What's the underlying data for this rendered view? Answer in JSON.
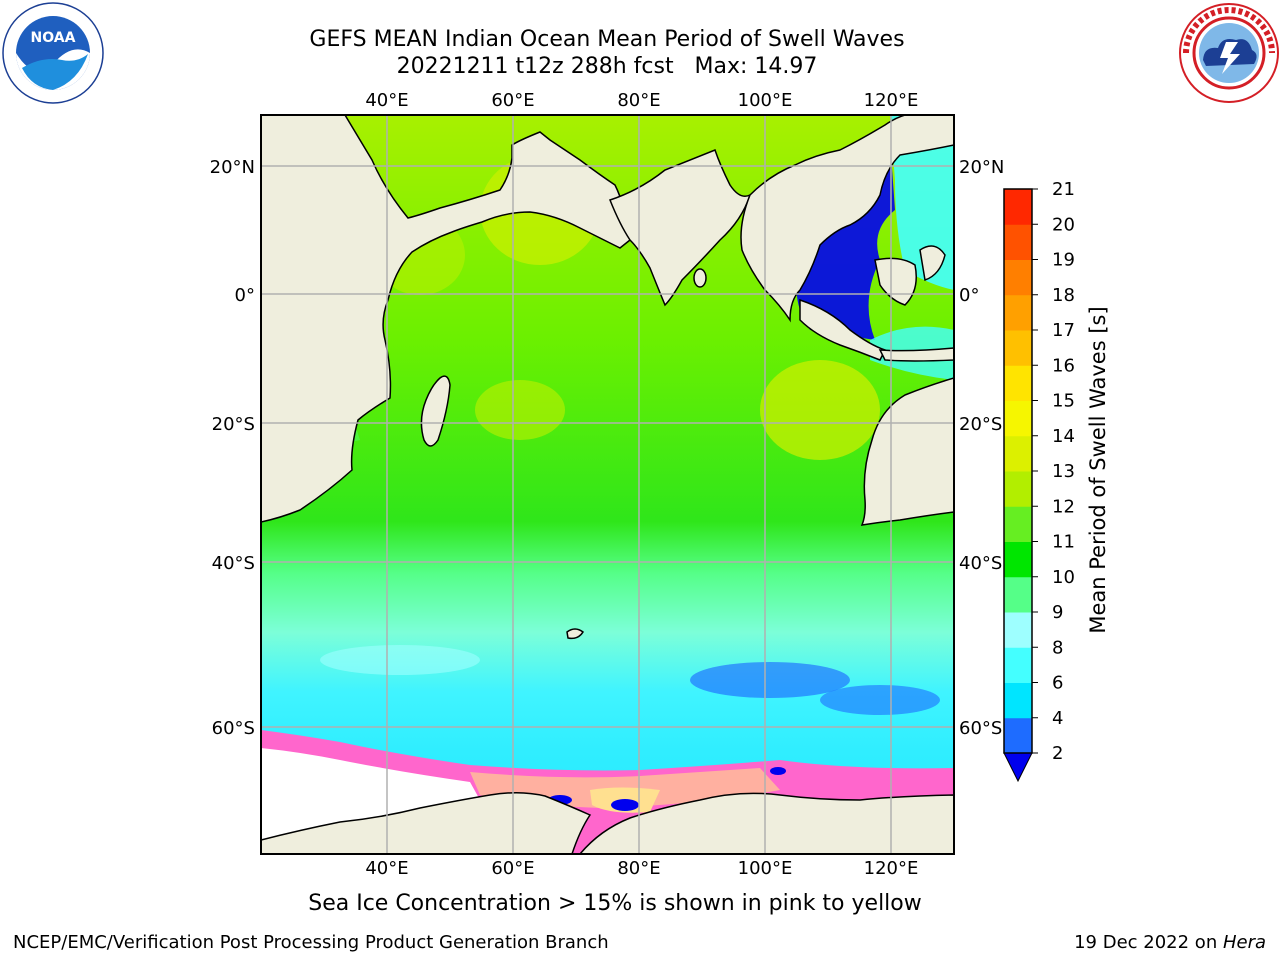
{
  "header": {
    "title_line1": "GEFS MEAN Indian Ocean Mean Period of Swell Waves",
    "title_line2": "20221211 t12z 288h fcst   Max: 14.97"
  },
  "logos": {
    "left": {
      "icon": "noaa-logo",
      "text": "NOAA",
      "ring_text": "NATIONAL OCEANIC AND ATMOSPHERIC ADMINISTRATION · U.S. DEPARTMENT OF COMMERCE"
    },
    "right": {
      "icon": "nws-logo",
      "ring_text": "NATIONAL WEATHER SERVICE"
    }
  },
  "map": {
    "lon_ticks_top": [
      "40°E",
      "60°E",
      "80°E",
      "100°E",
      "120°E"
    ],
    "lon_ticks_bottom": [
      "40°E",
      "60°E",
      "80°E",
      "100°E",
      "120°E"
    ],
    "lat_ticks_left": [
      "20°N",
      "0°",
      "20°S",
      "40°S",
      "60°S"
    ],
    "lat_ticks_right": [
      "20°N",
      "0°",
      "20°S",
      "40°S",
      "60°S"
    ],
    "land_color": "#efeedd",
    "gridline_color": "#b0b0b0"
  },
  "colorbar": {
    "title": "Mean Period of Swell Waves [s]",
    "ticks": [
      "2",
      "4",
      "6",
      "8",
      "9",
      "10",
      "11",
      "12",
      "13",
      "14",
      "15",
      "16",
      "17",
      "18",
      "19",
      "20",
      "21"
    ],
    "colors": [
      "#1e6cff",
      "#00e5ff",
      "#44ffff",
      "#9effff",
      "#55ff88",
      "#00e600",
      "#66ee22",
      "#b2ee00",
      "#dcf000",
      "#f6f600",
      "#ffe400",
      "#ffc000",
      "#ffa000",
      "#ff7f00",
      "#ff5200",
      "#ff2800"
    ],
    "under_color": "#0000ee"
  },
  "footer": {
    "sea_ice_note": "Sea Ice Concentration > 15% is shown in pink to yellow",
    "credit": "NCEP/EMC/Verification Post Processing Product Generation Branch",
    "date_prefix": "19 Dec 2022 on ",
    "machine": "Hera"
  }
}
